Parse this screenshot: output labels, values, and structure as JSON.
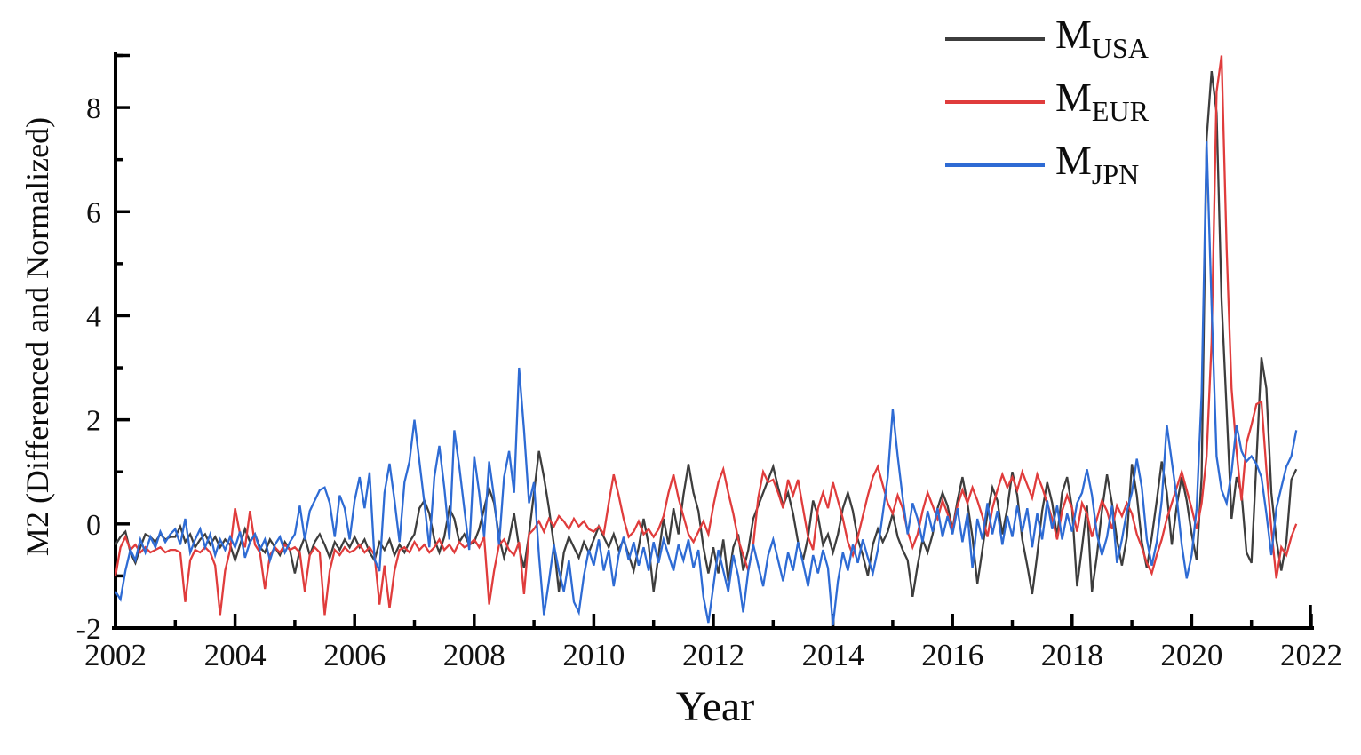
{
  "chart_data": {
    "type": "line",
    "title": "",
    "xlabel": "Year",
    "ylabel": "M2 (Differenced and Normalized)",
    "xlim": [
      2002,
      2022
    ],
    "ylim": [
      -2,
      9
    ],
    "grid": false,
    "legend_position": "top-right-inside",
    "x_axis": {
      "major_ticks": [
        2002,
        2004,
        2006,
        2008,
        2010,
        2012,
        2014,
        2016,
        2018,
        2020,
        2022
      ],
      "major_labels": [
        "2002",
        "2004",
        "2006",
        "2008",
        "2010",
        "2012",
        "2014",
        "2016",
        "2018",
        "2020",
        "2022"
      ],
      "minor_ticks": [
        2003,
        2005,
        2007,
        2009,
        2011,
        2013,
        2015,
        2017,
        2019,
        2021
      ]
    },
    "y_axis": {
      "major_ticks": [
        -2,
        0,
        2,
        4,
        6,
        8
      ],
      "major_labels": [
        "-2",
        "0",
        "2",
        "4",
        "6",
        "8"
      ],
      "minor_ticks": [
        -1,
        1,
        3,
        5,
        7,
        9
      ]
    },
    "x_start": 2002.0,
    "x_step": 0.0833333,
    "series": [
      {
        "id": "usa",
        "legend_main": "M",
        "legend_sub": "USA",
        "color": "#3d3d3d",
        "values": [
          -0.4,
          -0.25,
          -0.15,
          -0.55,
          -0.75,
          -0.45,
          -0.2,
          -0.25,
          -0.35,
          -0.2,
          -0.3,
          -0.25,
          -0.25,
          -0.05,
          -0.35,
          -0.2,
          -0.45,
          -0.3,
          -0.2,
          -0.4,
          -0.25,
          -0.45,
          -0.3,
          -0.4,
          -0.7,
          -0.4,
          -0.1,
          -0.35,
          -0.2,
          -0.45,
          -0.55,
          -0.3,
          -0.45,
          -0.6,
          -0.35,
          -0.5,
          -0.95,
          -0.5,
          -0.25,
          -0.6,
          -0.35,
          -0.2,
          -0.4,
          -0.65,
          -0.35,
          -0.5,
          -0.3,
          -0.45,
          -0.25,
          -0.45,
          -0.3,
          -0.55,
          -0.7,
          -0.35,
          -0.5,
          -0.3,
          -0.6,
          -0.4,
          -0.55,
          -0.35,
          -0.2,
          0.3,
          0.45,
          0.2,
          -0.3,
          -0.55,
          -0.25,
          0.3,
          0.1,
          -0.35,
          -0.2,
          -0.4,
          -0.35,
          -0.1,
          0.3,
          0.68,
          0.4,
          -0.25,
          -0.65,
          -0.3,
          0.2,
          -0.45,
          -0.85,
          -0.2,
          0.6,
          1.4,
          0.9,
          0.3,
          -0.4,
          -1.3,
          -0.55,
          -0.25,
          -0.45,
          -0.65,
          -0.35,
          -0.55,
          -0.3,
          -0.05,
          -0.25,
          -0.45,
          -0.2,
          -0.5,
          -0.3,
          -0.6,
          -0.9,
          -0.45,
          0.1,
          -0.4,
          -1.3,
          -0.6,
          0.1,
          -0.4,
          0.3,
          -0.2,
          0.55,
          1.15,
          0.6,
          0.25,
          -0.45,
          -0.95,
          -0.45,
          -0.95,
          -0.3,
          -1.1,
          -0.45,
          -0.2,
          -0.9,
          -0.5,
          0.1,
          0.35,
          0.6,
          0.85,
          1.1,
          0.7,
          0.35,
          0.6,
          0.2,
          -0.35,
          -0.7,
          -0.25,
          0.45,
          0.15,
          -0.4,
          -0.2,
          -0.55,
          -0.2,
          0.3,
          0.6,
          0.25,
          -0.3,
          -0.6,
          -1.0,
          -0.4,
          -0.1,
          -0.35,
          -0.15,
          0.2,
          -0.25,
          -0.5,
          -0.7,
          -1.4,
          -0.8,
          -0.3,
          -0.55,
          -0.2,
          0.3,
          0.6,
          0.35,
          -0.1,
          0.45,
          0.9,
          0.4,
          -0.25,
          -1.15,
          -0.5,
          0.2,
          0.7,
          0.45,
          -0.2,
          0.3,
          1.0,
          0.55,
          -0.3,
          -0.8,
          -1.35,
          -0.6,
          0.25,
          0.8,
          0.4,
          -0.25,
          0.6,
          0.9,
          0.3,
          -1.2,
          -0.45,
          0.35,
          -1.3,
          -0.6,
          0.25,
          0.95,
          0.4,
          -0.3,
          -0.8,
          -0.25,
          1.15,
          0.55,
          -0.35,
          -0.85,
          -0.25,
          0.45,
          1.2,
          0.6,
          -0.4,
          0.35,
          0.9,
          0.45,
          -0.2,
          -0.7,
          0.9,
          7.4,
          8.7,
          7.9,
          4.3,
          2.2,
          0.1,
          0.9,
          0.6,
          -0.55,
          -0.75,
          1.2,
          3.2,
          2.6,
          0.6,
          -0.3,
          -0.9,
          -0.35,
          0.85,
          1.05
        ]
      },
      {
        "id": "eur",
        "legend_main": "M",
        "legend_sub": "EUR",
        "color": "#e03c3c",
        "values": [
          -1.0,
          -0.45,
          -0.25,
          -0.5,
          -0.4,
          -0.55,
          -0.45,
          -0.55,
          -0.5,
          -0.45,
          -0.55,
          -0.5,
          -0.5,
          -0.55,
          -1.5,
          -0.7,
          -0.5,
          -0.55,
          -0.45,
          -0.55,
          -0.8,
          -1.75,
          -0.9,
          -0.5,
          0.3,
          -0.2,
          -0.45,
          0.25,
          -0.4,
          -0.55,
          -1.25,
          -0.6,
          -0.45,
          -0.55,
          -0.4,
          -0.5,
          -0.45,
          -0.55,
          -1.3,
          -0.6,
          -0.45,
          -0.55,
          -1.75,
          -0.9,
          -0.5,
          -0.6,
          -0.45,
          -0.55,
          -0.5,
          -0.4,
          -0.55,
          -0.45,
          -0.6,
          -1.55,
          -0.8,
          -1.62,
          -0.9,
          -0.5,
          -0.45,
          -0.55,
          -0.35,
          -0.5,
          -0.4,
          -0.55,
          -0.45,
          -0.3,
          -0.5,
          -0.4,
          -0.55,
          -0.35,
          -0.45,
          -0.4,
          -0.3,
          -0.45,
          -0.25,
          -1.55,
          -0.9,
          -0.4,
          -0.3,
          -0.5,
          -0.6,
          -0.35,
          -1.35,
          -0.2,
          -0.1,
          0.05,
          -0.15,
          0.1,
          -0.05,
          0.15,
          0.05,
          -0.1,
          0.1,
          -0.05,
          0.05,
          -0.1,
          -0.15,
          -0.05,
          -0.2,
          0.4,
          0.95,
          0.55,
          0.1,
          -0.25,
          -0.15,
          0.05,
          -0.2,
          -0.1,
          -0.25,
          -0.1,
          0.15,
          0.6,
          0.95,
          0.5,
          0.15,
          -0.2,
          -0.35,
          -0.15,
          0.05,
          -0.2,
          0.35,
          0.8,
          1.05,
          0.6,
          0.2,
          -0.3,
          -0.6,
          -0.9,
          -0.4,
          0.5,
          1.0,
          0.8,
          0.85,
          0.6,
          0.3,
          0.85,
          0.55,
          0.85,
          0.3,
          -0.25,
          -0.5,
          0.3,
          0.6,
          0.3,
          0.8,
          0.45,
          0.1,
          -0.35,
          -0.6,
          -0.25,
          0.15,
          0.55,
          0.9,
          1.1,
          0.75,
          0.4,
          0.2,
          0.55,
          0.3,
          -0.15,
          -0.45,
          -0.2,
          0.25,
          0.6,
          0.35,
          0.1,
          0.45,
          0.2,
          -0.1,
          0.35,
          0.65,
          0.4,
          0.7,
          0.45,
          0.15,
          -0.25,
          0.3,
          0.65,
          0.95,
          0.7,
          0.9,
          0.65,
          1.0,
          0.75,
          0.5,
          0.95,
          0.7,
          0.4,
          0.1,
          -0.3,
          0.25,
          0.55,
          0.3,
          -0.15,
          0.4,
          0.2,
          -0.25,
          0.1,
          0.45,
          0.25,
          -0.1,
          0.35,
          0.15,
          0.4,
          0.2,
          -0.2,
          -0.45,
          -0.75,
          -0.95,
          -0.6,
          -0.3,
          0.1,
          0.4,
          0.7,
          1.0,
          0.65,
          0.3,
          -0.1,
          0.4,
          1.3,
          3.5,
          8.3,
          9.0,
          5.3,
          2.6,
          1.4,
          0.45,
          1.55,
          1.9,
          2.3,
          2.35,
          1.05,
          -0.1,
          -1.05,
          -0.45,
          -0.6,
          -0.25,
          0.0
        ]
      },
      {
        "id": "jpn",
        "legend_main": "M",
        "legend_sub": "JPN",
        "color": "#2e6bd4",
        "values": [
          -1.3,
          -1.45,
          -0.9,
          -0.5,
          -0.7,
          -0.3,
          -0.55,
          -0.25,
          -0.45,
          -0.15,
          -0.35,
          -0.2,
          -0.1,
          -0.4,
          0.1,
          -0.55,
          -0.3,
          -0.1,
          -0.45,
          -0.2,
          -0.6,
          -0.3,
          -0.5,
          -0.25,
          -0.45,
          -0.15,
          -0.65,
          -0.35,
          -0.2,
          -0.5,
          -0.3,
          -0.7,
          -0.4,
          -0.25,
          -0.55,
          -0.35,
          -0.2,
          0.35,
          -0.3,
          0.25,
          0.45,
          0.65,
          0.7,
          0.4,
          -0.25,
          0.55,
          0.3,
          -0.3,
          0.45,
          0.9,
          0.3,
          0.99,
          -0.68,
          -0.91,
          0.6,
          1.16,
          0.45,
          -0.35,
          0.8,
          1.2,
          2.0,
          1.2,
          0.4,
          -0.45,
          0.9,
          1.5,
          0.7,
          -0.3,
          1.8,
          1.1,
          0.3,
          -0.5,
          1.3,
          0.6,
          -0.25,
          1.2,
          0.5,
          -0.4,
          0.9,
          1.4,
          0.6,
          3.0,
          1.8,
          0.4,
          0.8,
          -0.6,
          -1.75,
          -1.1,
          -0.4,
          -0.9,
          -1.3,
          -0.7,
          -1.5,
          -1.7,
          -1.0,
          -0.5,
          -0.8,
          -0.3,
          -0.9,
          -0.5,
          -1.2,
          -0.6,
          -0.25,
          -0.7,
          -0.35,
          -0.8,
          -0.45,
          -0.9,
          -0.35,
          -0.75,
          -0.3,
          -0.6,
          -0.9,
          -0.4,
          -0.7,
          -0.3,
          -0.85,
          -0.5,
          -1.4,
          -1.9,
          -1.2,
          -0.5,
          -0.9,
          -1.3,
          -0.6,
          -1.0,
          -1.7,
          -0.9,
          -0.4,
          -0.8,
          -1.2,
          -0.6,
          -0.3,
          -0.7,
          -1.1,
          -0.55,
          -0.9,
          -0.35,
          -0.75,
          -1.2,
          -0.6,
          -0.95,
          -0.5,
          -0.85,
          -1.95,
          -1.1,
          -0.55,
          -0.9,
          -0.4,
          -0.75,
          -0.3,
          -0.65,
          -0.95,
          -0.5,
          0.2,
          0.9,
          2.2,
          1.3,
          0.5,
          -0.2,
          0.4,
          0.1,
          -0.35,
          0.25,
          -0.15,
          0.3,
          -0.25,
          0.15,
          -0.2,
          0.3,
          -0.35,
          0.2,
          -0.85,
          0.1,
          -0.3,
          0.4,
          -0.2,
          0.25,
          -0.4,
          0.15,
          -0.25,
          0.35,
          -0.15,
          0.3,
          -0.45,
          0.2,
          -0.3,
          0.45,
          -0.1,
          0.35,
          -0.3,
          0.2,
          -0.15,
          0.4,
          0.6,
          1.05,
          0.55,
          -0.2,
          -0.6,
          -0.25,
          0.35,
          -0.75,
          -0.3,
          0.25,
          0.6,
          1.25,
          0.7,
          -0.3,
          -0.8,
          -0.35,
          0.45,
          1.9,
          1.2,
          0.5,
          -0.4,
          -1.05,
          -0.6,
          0.3,
          2.5,
          7.35,
          4.2,
          1.3,
          0.65,
          0.4,
          1.0,
          1.9,
          1.4,
          1.2,
          1.3,
          1.15,
          0.9,
          0.2,
          -0.6,
          0.3,
          0.7,
          1.1,
          1.3,
          1.8
        ]
      }
    ]
  }
}
